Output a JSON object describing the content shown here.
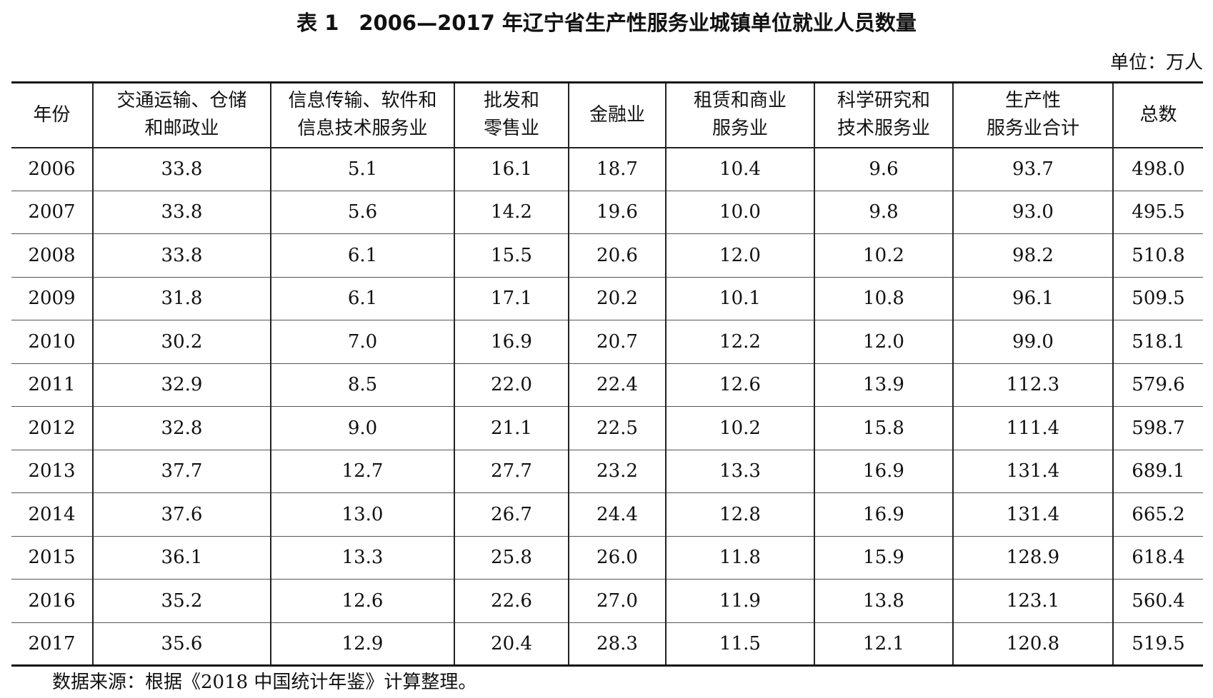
{
  "title": {
    "number": "表 1",
    "text": "2006—2017 年辽宁省生产性服务业城镇单位就业人员数量"
  },
  "unit": "单位：万人",
  "table": {
    "headers": [
      {
        "line1": "年份",
        "line2": ""
      },
      {
        "line1": "交通运输、仓储",
        "line2": "和邮政业"
      },
      {
        "line1": "信息传输、软件和",
        "line2": "信息技术服务业"
      },
      {
        "line1": "批发和",
        "line2": "零售业"
      },
      {
        "line1": "金融业",
        "line2": ""
      },
      {
        "line1": "租赁和商业",
        "line2": "服务业"
      },
      {
        "line1": "科学研究和",
        "line2": "技术服务业"
      },
      {
        "line1": "生产性",
        "line2": "服务业合计"
      },
      {
        "line1": "总数",
        "line2": ""
      }
    ],
    "rows": [
      [
        "2006",
        "33.8",
        "5.1",
        "16.1",
        "18.7",
        "10.4",
        "9.6",
        "93.7",
        "498.0"
      ],
      [
        "2007",
        "33.8",
        "5.6",
        "14.2",
        "19.6",
        "10.0",
        "9.8",
        "93.0",
        "495.5"
      ],
      [
        "2008",
        "33.8",
        "6.1",
        "15.5",
        "20.6",
        "12.0",
        "10.2",
        "98.2",
        "510.8"
      ],
      [
        "2009",
        "31.8",
        "6.1",
        "17.1",
        "20.2",
        "10.1",
        "10.8",
        "96.1",
        "509.5"
      ],
      [
        "2010",
        "30.2",
        "7.0",
        "16.9",
        "20.7",
        "12.2",
        "12.0",
        "99.0",
        "518.1"
      ],
      [
        "2011",
        "32.9",
        "8.5",
        "22.0",
        "22.4",
        "12.6",
        "13.9",
        "112.3",
        "579.6"
      ],
      [
        "2012",
        "32.8",
        "9.0",
        "21.1",
        "22.5",
        "10.2",
        "15.8",
        "111.4",
        "598.7"
      ],
      [
        "2013",
        "37.7",
        "12.7",
        "27.7",
        "23.2",
        "13.3",
        "16.9",
        "131.4",
        "689.1"
      ],
      [
        "2014",
        "37.6",
        "13.0",
        "26.7",
        "24.4",
        "12.8",
        "16.9",
        "131.4",
        "665.2"
      ],
      [
        "2015",
        "36.1",
        "13.3",
        "25.8",
        "26.0",
        "11.8",
        "15.9",
        "128.9",
        "618.4"
      ],
      [
        "2016",
        "35.2",
        "12.6",
        "22.6",
        "27.0",
        "11.9",
        "13.8",
        "123.1",
        "560.4"
      ],
      [
        "2017",
        "35.6",
        "12.9",
        "20.4",
        "28.3",
        "11.5",
        "12.1",
        "120.8",
        "519.5"
      ]
    ]
  },
  "source": "数据来源：根据《2018 中国统计年鉴》计算整理。"
}
